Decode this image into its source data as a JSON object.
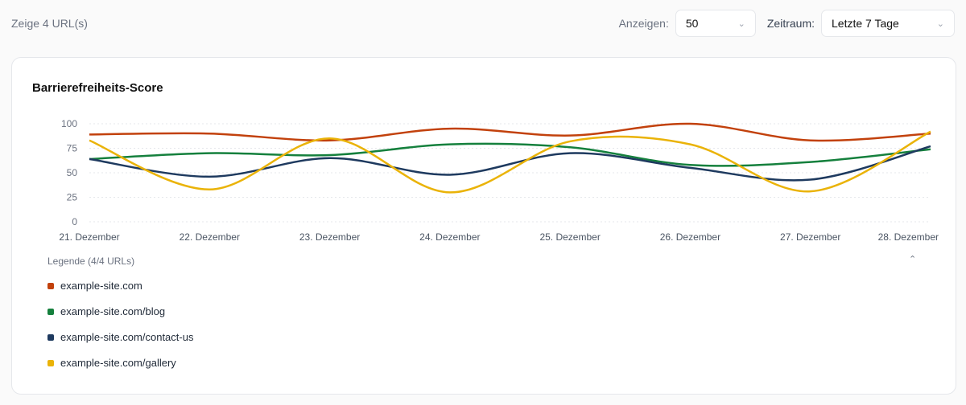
{
  "header": {
    "count_text": "Zeige 4 URL(s)",
    "show_label": "Anzeigen:",
    "show_value": "50",
    "period_label": "Zeitraum:",
    "period_value": "Letzte 7 Tage"
  },
  "card": {
    "title": "Barrierefreiheits-Score",
    "legend_title": "Legende (4/4 URLs)",
    "collapse_icon": "chevron-up-icon"
  },
  "chart_data": {
    "type": "line",
    "title": "Barrierefreiheits-Score",
    "categories": [
      "21. Dezember",
      "22. Dezember",
      "23. Dezember",
      "24. Dezember",
      "25. Dezember",
      "26. Dezember",
      "27. Dezember",
      "28. Dezember"
    ],
    "ylim": [
      0,
      100
    ],
    "yticks": [
      0,
      25,
      50,
      75,
      100
    ],
    "grid": true,
    "legend_placement": "bottom",
    "series": [
      {
        "name": "example-site.com",
        "color": "#c2410c",
        "values": [
          89,
          90,
          83,
          95,
          88,
          100,
          83,
          90
        ]
      },
      {
        "name": "example-site.com/blog",
        "color": "#15803d",
        "values": [
          64,
          70,
          68,
          79,
          76,
          58,
          61,
          74
        ]
      },
      {
        "name": "example-site.com/contact-us",
        "color": "#1e3a5f",
        "values": [
          64,
          46,
          65,
          48,
          70,
          55,
          43,
          77
        ]
      },
      {
        "name": "example-site.com/gallery",
        "color": "#eab308",
        "values": [
          83,
          33,
          85,
          30,
          82,
          79,
          31,
          92
        ]
      }
    ]
  }
}
